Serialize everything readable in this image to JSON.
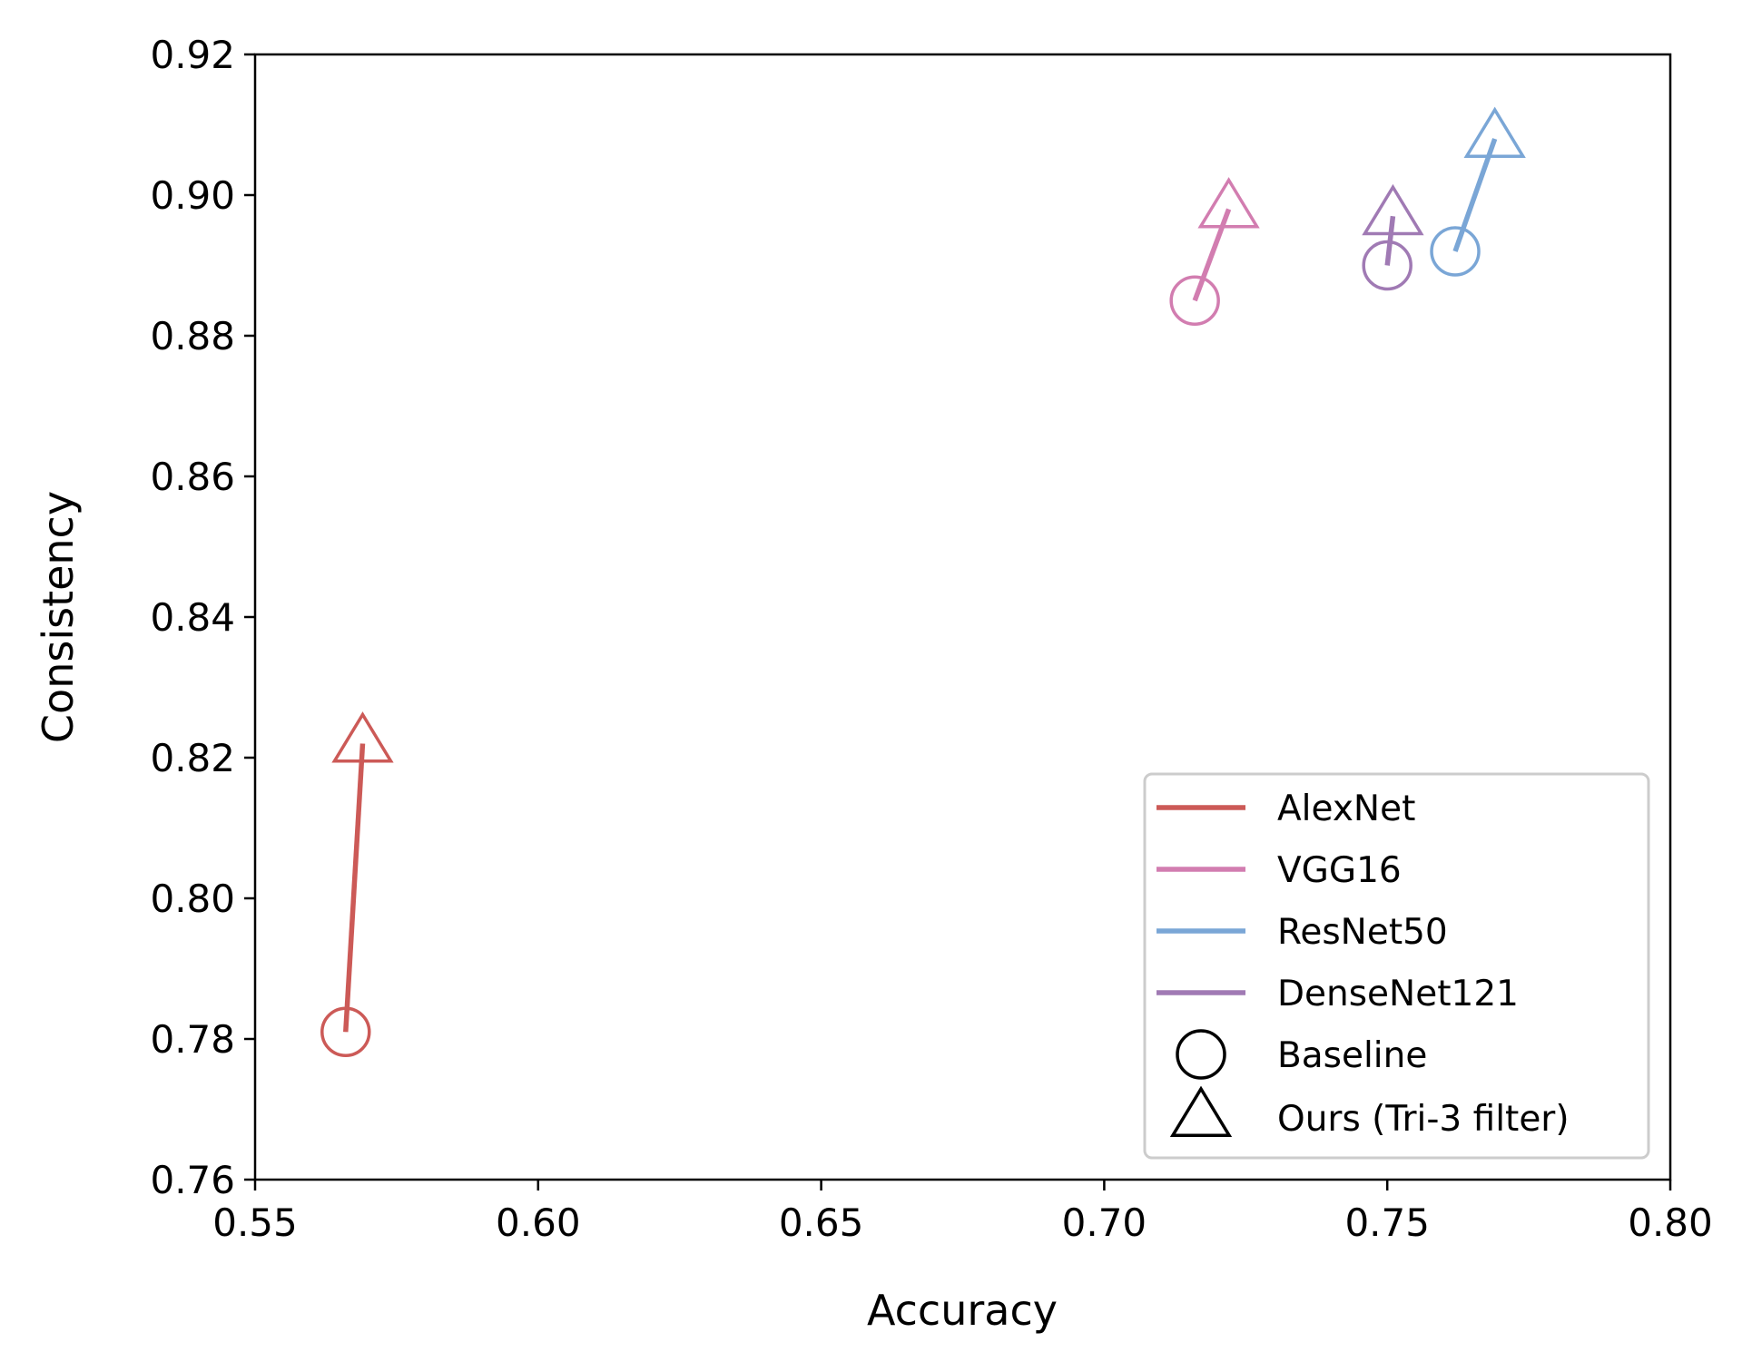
{
  "chart_data": {
    "type": "scatter",
    "title": "",
    "xlabel": "Accuracy",
    "ylabel": "Consistency",
    "xlim": [
      0.55,
      0.8
    ],
    "ylim": [
      0.76,
      0.92
    ],
    "x_ticks": [
      "0.55",
      "0.60",
      "0.65",
      "0.70",
      "0.75",
      "0.80"
    ],
    "y_ticks": [
      "0.76",
      "0.78",
      "0.80",
      "0.82",
      "0.84",
      "0.86",
      "0.88",
      "0.90",
      "0.92"
    ],
    "x_tick_values": [
      0.55,
      0.6,
      0.65,
      0.7,
      0.75,
      0.8
    ],
    "y_tick_values": [
      0.76,
      0.78,
      0.8,
      0.82,
      0.84,
      0.86,
      0.88,
      0.9,
      0.92
    ],
    "grid": false,
    "legend_position": "bottom-right",
    "series": [
      {
        "name": "AlexNet",
        "color": "#cc5a57",
        "baseline": [
          0.566,
          0.781
        ],
        "ours": [
          0.569,
          0.822
        ]
      },
      {
        "name": "VGG16",
        "color": "#d27db0",
        "baseline": [
          0.716,
          0.885
        ],
        "ours": [
          0.722,
          0.898
        ]
      },
      {
        "name": "ResNet50",
        "color": "#7aa6d6",
        "baseline": [
          0.762,
          0.892
        ],
        "ours": [
          0.769,
          0.908
        ]
      },
      {
        "name": "DenseNet121",
        "color": "#a07ab4",
        "baseline": [
          0.75,
          0.89
        ],
        "ours": [
          0.751,
          0.897
        ]
      }
    ],
    "marker_legend": [
      {
        "name": "Baseline",
        "marker": "circle"
      },
      {
        "name": "Ours (Tri-3 filter)",
        "marker": "triangle"
      }
    ]
  }
}
